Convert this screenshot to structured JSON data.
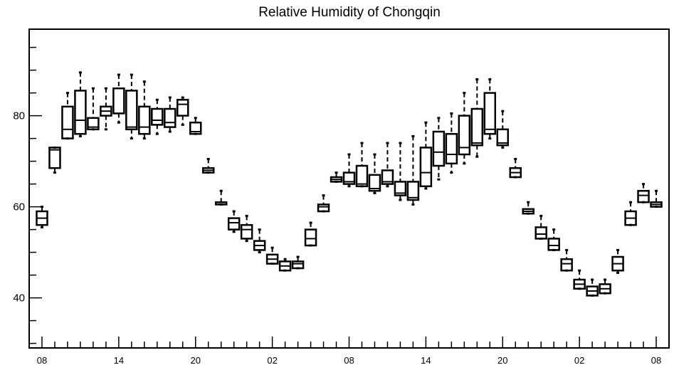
{
  "chart_data": {
    "type": "box",
    "title": "Relative Humidity of Chongqin",
    "xlabel": "",
    "ylabel": "",
    "ylim": [
      29,
      99
    ],
    "y_ticks": [
      40,
      60,
      80
    ],
    "x_tick_labels": [
      "08",
      "14",
      "20",
      "02",
      "08",
      "14",
      "20",
      "02",
      "08"
    ],
    "x_tick_positions": [
      0,
      6,
      12,
      18,
      24,
      30,
      36,
      42,
      48
    ],
    "xlim": [
      -1,
      49
    ],
    "grid": false,
    "boxes": [
      {
        "x": 0,
        "whisker_low": 55.5,
        "q1": 56.0,
        "median": 57.5,
        "q3": 59.0,
        "whisker_high": 60.0
      },
      {
        "x": 1,
        "whisker_low": 67.5,
        "q1": 68.5,
        "median": 72.5,
        "q3": 73.0,
        "whisker_high": 73.0
      },
      {
        "x": 2,
        "whisker_low": 75.0,
        "q1": 75.0,
        "median": 77.0,
        "q3": 82.0,
        "whisker_high": 85.0
      },
      {
        "x": 3,
        "whisker_low": 75.5,
        "q1": 76.0,
        "median": 79.0,
        "q3": 85.5,
        "whisker_high": 89.5
      },
      {
        "x": 4,
        "whisker_low": 77.0,
        "q1": 77.0,
        "median": 77.5,
        "q3": 79.5,
        "whisker_high": 86.0
      },
      {
        "x": 5,
        "whisker_low": 77.0,
        "q1": 80.0,
        "median": 81.0,
        "q3": 82.0,
        "whisker_high": 86.0
      },
      {
        "x": 6,
        "whisker_low": 78.5,
        "q1": 80.5,
        "median": 80.5,
        "q3": 86.0,
        "whisker_high": 89.0
      },
      {
        "x": 7,
        "whisker_low": 75.0,
        "q1": 77.0,
        "median": 77.5,
        "q3": 85.5,
        "whisker_high": 89.0
      },
      {
        "x": 8,
        "whisker_low": 75.0,
        "q1": 76.0,
        "median": 77.5,
        "q3": 82.0,
        "whisker_high": 87.5
      },
      {
        "x": 9,
        "whisker_low": 76.0,
        "q1": 78.0,
        "median": 79.0,
        "q3": 81.5,
        "whisker_high": 83.5
      },
      {
        "x": 10,
        "whisker_low": 76.5,
        "q1": 77.5,
        "median": 78.5,
        "q3": 81.5,
        "whisker_high": 84.0
      },
      {
        "x": 11,
        "whisker_low": 78.0,
        "q1": 80.0,
        "median": 82.5,
        "q3": 83.5,
        "whisker_high": 84.0
      },
      {
        "x": 12,
        "whisker_low": 76.0,
        "q1": 76.0,
        "median": 76.5,
        "q3": 78.5,
        "whisker_high": 79.5
      },
      {
        "x": 13,
        "whisker_low": 67.5,
        "q1": 67.5,
        "median": 68.0,
        "q3": 68.5,
        "whisker_high": 70.5
      },
      {
        "x": 14,
        "whisker_low": 60.5,
        "q1": 60.5,
        "median": 61.0,
        "q3": 61.0,
        "whisker_high": 63.5
      },
      {
        "x": 15,
        "whisker_low": 54.5,
        "q1": 55.0,
        "median": 56.5,
        "q3": 57.5,
        "whisker_high": 59.0
      },
      {
        "x": 16,
        "whisker_low": 52.5,
        "q1": 53.0,
        "median": 55.0,
        "q3": 56.0,
        "whisker_high": 58.0
      },
      {
        "x": 17,
        "whisker_low": 50.0,
        "q1": 50.5,
        "median": 51.5,
        "q3": 52.5,
        "whisker_high": 55.0
      },
      {
        "x": 18,
        "whisker_low": 47.5,
        "q1": 47.5,
        "median": 48.5,
        "q3": 49.5,
        "whisker_high": 51.0
      },
      {
        "x": 19,
        "whisker_low": 46.0,
        "q1": 46.0,
        "median": 47.0,
        "q3": 48.0,
        "whisker_high": 48.5
      },
      {
        "x": 20,
        "whisker_low": 46.5,
        "q1": 46.5,
        "median": 47.5,
        "q3": 48.0,
        "whisker_high": 49.0
      },
      {
        "x": 21,
        "whisker_low": 51.5,
        "q1": 51.5,
        "median": 53.0,
        "q3": 55.0,
        "whisker_high": 56.5
      },
      {
        "x": 22,
        "whisker_low": 59.0,
        "q1": 59.0,
        "median": 60.0,
        "q3": 60.5,
        "whisker_high": 62.5
      },
      {
        "x": 23,
        "whisker_low": 65.5,
        "q1": 65.5,
        "median": 66.0,
        "q3": 66.5,
        "whisker_high": 67.5
      },
      {
        "x": 24,
        "whisker_low": 64.5,
        "q1": 65.0,
        "median": 65.5,
        "q3": 67.5,
        "whisker_high": 71.5
      },
      {
        "x": 25,
        "whisker_low": 64.5,
        "q1": 64.5,
        "median": 65.0,
        "q3": 69.0,
        "whisker_high": 74.0
      },
      {
        "x": 26,
        "whisker_low": 63.0,
        "q1": 63.5,
        "median": 64.0,
        "q3": 67.0,
        "whisker_high": 71.5
      },
      {
        "x": 27,
        "whisker_low": 64.5,
        "q1": 65.0,
        "median": 65.5,
        "q3": 68.0,
        "whisker_high": 74.0
      },
      {
        "x": 28,
        "whisker_low": 61.5,
        "q1": 62.5,
        "median": 63.0,
        "q3": 65.5,
        "whisker_high": 74.0
      },
      {
        "x": 29,
        "whisker_low": 60.5,
        "q1": 61.5,
        "median": 62.0,
        "q3": 65.5,
        "whisker_high": 75.5
      },
      {
        "x": 30,
        "whisker_low": 64.0,
        "q1": 64.5,
        "median": 67.5,
        "q3": 73.0,
        "whisker_high": 78.5
      },
      {
        "x": 31,
        "whisker_low": 66.0,
        "q1": 69.0,
        "median": 72.0,
        "q3": 76.5,
        "whisker_high": 79.5
      },
      {
        "x": 32,
        "whisker_low": 67.5,
        "q1": 69.5,
        "median": 71.5,
        "q3": 76.0,
        "whisker_high": 80.5
      },
      {
        "x": 33,
        "whisker_low": 69.5,
        "q1": 71.5,
        "median": 73.0,
        "q3": 80.0,
        "whisker_high": 85.0
      },
      {
        "x": 34,
        "whisker_low": 71.0,
        "q1": 73.5,
        "median": 74.0,
        "q3": 81.5,
        "whisker_high": 88.0
      },
      {
        "x": 35,
        "whisker_low": 75.0,
        "q1": 76.0,
        "median": 77.0,
        "q3": 85.0,
        "whisker_high": 88.0
      },
      {
        "x": 36,
        "whisker_low": 73.0,
        "q1": 73.5,
        "median": 74.0,
        "q3": 77.0,
        "whisker_high": 81.0
      },
      {
        "x": 37,
        "whisker_low": 66.5,
        "q1": 66.5,
        "median": 67.5,
        "q3": 68.5,
        "whisker_high": 70.5
      },
      {
        "x": 38,
        "whisker_low": 58.5,
        "q1": 58.5,
        "median": 59.0,
        "q3": 59.5,
        "whisker_high": 61.0
      },
      {
        "x": 39,
        "whisker_low": 53.0,
        "q1": 53.0,
        "median": 54.0,
        "q3": 55.5,
        "whisker_high": 58.0
      },
      {
        "x": 40,
        "whisker_low": 50.5,
        "q1": 50.5,
        "median": 51.5,
        "q3": 53.0,
        "whisker_high": 55.0
      },
      {
        "x": 41,
        "whisker_low": 46.0,
        "q1": 46.0,
        "median": 47.5,
        "q3": 48.5,
        "whisker_high": 50.5
      },
      {
        "x": 42,
        "whisker_low": 42.0,
        "q1": 42.0,
        "median": 43.0,
        "q3": 44.0,
        "whisker_high": 46.0
      },
      {
        "x": 43,
        "whisker_low": 40.5,
        "q1": 40.5,
        "median": 41.5,
        "q3": 42.5,
        "whisker_high": 44.0
      },
      {
        "x": 44,
        "whisker_low": 41.0,
        "q1": 41.0,
        "median": 42.0,
        "q3": 43.0,
        "whisker_high": 44.0
      },
      {
        "x": 45,
        "whisker_low": 45.5,
        "q1": 46.0,
        "median": 47.5,
        "q3": 49.0,
        "whisker_high": 50.5
      },
      {
        "x": 46,
        "whisker_low": 56.0,
        "q1": 56.0,
        "median": 57.5,
        "q3": 59.0,
        "whisker_high": 61.0
      },
      {
        "x": 47,
        "whisker_low": 61.0,
        "q1": 61.0,
        "median": 62.5,
        "q3": 63.5,
        "whisker_high": 65.0
      },
      {
        "x": 48,
        "whisker_low": 60.0,
        "q1": 60.0,
        "median": 60.5,
        "q3": 61.0,
        "whisker_high": 63.5
      }
    ]
  }
}
